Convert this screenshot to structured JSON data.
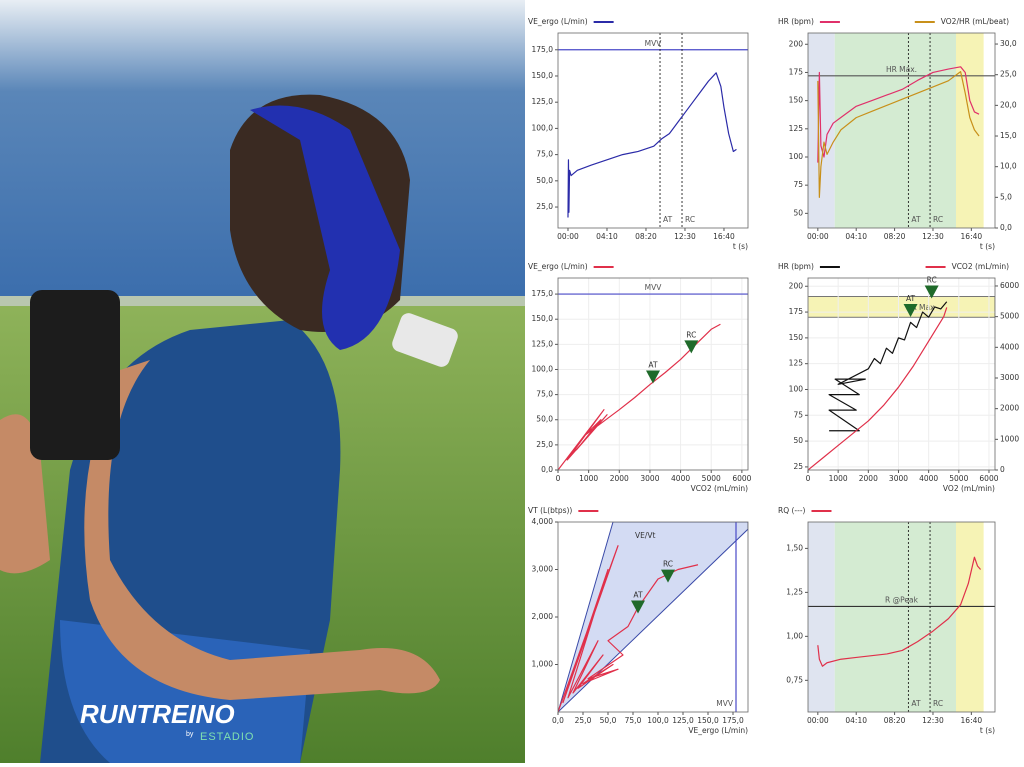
{
  "branding": {
    "brand": "RUNTREINO",
    "by": "by",
    "partner": "ESTADIO"
  },
  "chart_data": [
    {
      "type": "line",
      "xlabel": "t (s)",
      "xlim": [
        -64,
        1154
      ],
      "ylim": [
        5,
        191
      ],
      "xticks": [
        {
          "value": 0,
          "label": "00:00"
        },
        {
          "value": 250,
          "label": "04:10"
        },
        {
          "value": 500,
          "label": "08:20"
        },
        {
          "value": 750,
          "label": "12:30"
        },
        {
          "value": 1000,
          "label": "16:40"
        }
      ],
      "yticks": [
        {
          "value": 25,
          "label": "25,0"
        },
        {
          "value": 50,
          "label": "50,0"
        },
        {
          "value": 75,
          "label": "75,0"
        },
        {
          "value": 100,
          "label": "100,0"
        },
        {
          "value": 125,
          "label": "125,0"
        },
        {
          "value": 150,
          "label": "150,0"
        },
        {
          "value": 175,
          "label": "175,0"
        }
      ],
      "x": [
        0,
        3,
        6,
        10,
        20,
        60,
        150,
        250,
        350,
        450,
        550,
        600,
        650,
        700,
        750,
        800,
        850,
        900,
        950,
        980,
        1000,
        1030,
        1060,
        1080
      ],
      "series": [
        {
          "name": "VE_ergo (L/min)",
          "color": "#2b2ba8",
          "values": [
            15,
            70,
            20,
            60,
            55,
            60,
            65,
            70,
            75,
            78,
            83,
            90,
            95,
            105,
            115,
            125,
            135,
            145,
            153,
            140,
            120,
            95,
            78,
            80
          ]
        }
      ],
      "hlines": [
        {
          "label": "MVV",
          "y": 175,
          "color": "#4a4ac8"
        }
      ],
      "vlines": [
        {
          "label": "AT",
          "x": 590
        },
        {
          "label": "RC",
          "x": 731
        }
      ]
    },
    {
      "type": "line",
      "xlabel": "t (s)",
      "xlim": [
        -64,
        1154
      ],
      "ylim": [
        37,
        210
      ],
      "y2lim": [
        0,
        31.8
      ],
      "xticks": [
        {
          "value": 0,
          "label": "00:00"
        },
        {
          "value": 250,
          "label": "04:10"
        },
        {
          "value": 500,
          "label": "08:20"
        },
        {
          "value": 750,
          "label": "12:30"
        },
        {
          "value": 1000,
          "label": "16:40"
        }
      ],
      "yticks": [
        50,
        75,
        100,
        125,
        150,
        175,
        200
      ],
      "y2ticks": [
        {
          "value": 0,
          "label": "0,0"
        },
        {
          "value": 5,
          "label": "5,0"
        },
        {
          "value": 10,
          "label": "10,0"
        },
        {
          "value": 15,
          "label": "15,0"
        },
        {
          "value": 20,
          "label": "20,0"
        },
        {
          "value": 25,
          "label": "25,0"
        },
        {
          "value": 30,
          "label": "30,0"
        }
      ],
      "bands": [
        {
          "from": -64,
          "to": 110,
          "color": "#dfe4f0"
        },
        {
          "from": 110,
          "to": 900,
          "color": "#d4ebd2"
        },
        {
          "from": 900,
          "to": 1080,
          "color": "#f6f3b5"
        }
      ],
      "x": [
        0,
        10,
        20,
        40,
        60,
        100,
        150,
        250,
        350,
        450,
        550,
        650,
        750,
        850,
        930,
        960,
        990,
        1020,
        1050
      ],
      "series": [
        {
          "name": "HR (bpm)",
          "color": "#e0306a",
          "values": [
            95,
            175,
            110,
            100,
            120,
            130,
            135,
            145,
            150,
            155,
            160,
            168,
            175,
            178,
            180,
            175,
            150,
            140,
            138
          ]
        },
        {
          "name": "VO2/HR (mL/beat)",
          "color": "#c8901a",
          "axis": "y2",
          "values": [
            24,
            5,
            10,
            14,
            12,
            14,
            16,
            18,
            19,
            20,
            21,
            22,
            23,
            24,
            25.5,
            22,
            18,
            16,
            15
          ]
        }
      ],
      "hlines": [
        {
          "label": "HR Max.",
          "y": 172,
          "color": "#555"
        }
      ],
      "vlines": [
        {
          "label": "AT",
          "x": 590
        },
        {
          "label": "RC",
          "x": 731
        }
      ]
    },
    {
      "type": "line",
      "xlabel": "VCO2 (mL/min)",
      "xlim": [
        0,
        6200
      ],
      "ylim": [
        0,
        191
      ],
      "grid": true,
      "xticks": [
        0,
        1000,
        2000,
        3000,
        4000,
        5000,
        6000
      ],
      "yticks": [
        {
          "value": 0,
          "label": "0,0"
        },
        {
          "value": 25,
          "label": "25,0"
        },
        {
          "value": 50,
          "label": "50,0"
        },
        {
          "value": 75,
          "label": "75,0"
        },
        {
          "value": 100,
          "label": "100,0"
        },
        {
          "value": 125,
          "label": "125,0"
        },
        {
          "value": 150,
          "label": "150,0"
        },
        {
          "value": 175,
          "label": "175,0"
        }
      ],
      "series": [
        {
          "name": "VE_ergo (L/min)",
          "color": "#e0304a",
          "x": [
            0,
            1500,
            300,
            1600,
            600,
            1400,
            900,
            2000,
            2500,
            3000,
            3500,
            4000,
            4500,
            5000,
            5300
          ],
          "values": [
            0,
            60,
            10,
            55,
            20,
            50,
            35,
            60,
            72,
            85,
            97,
            110,
            125,
            140,
            145
          ]
        }
      ],
      "hlines": [
        {
          "label": "MVV",
          "y": 175,
          "color": "#4a4ac8"
        }
      ],
      "markers": [
        {
          "label": "AT",
          "x": 3100,
          "y": 92
        },
        {
          "label": "RC",
          "x": 4350,
          "y": 122
        }
      ]
    },
    {
      "type": "line",
      "xlabel": "VO2 (mL/min)",
      "xlim": [
        0,
        6200
      ],
      "ylim": [
        22,
        208
      ],
      "y2lim": [
        0,
        6260
      ],
      "grid": true,
      "xticks": [
        0,
        1000,
        2000,
        3000,
        4000,
        5000,
        6000
      ],
      "yticks": [
        25,
        50,
        75,
        100,
        125,
        150,
        175,
        200
      ],
      "y2ticks": [
        0,
        1000,
        2000,
        3000,
        4000,
        5000,
        6000
      ],
      "hbands": [
        {
          "from": 170,
          "to": 190,
          "color": "#f6f3b5",
          "label": "HR Max"
        }
      ],
      "series": [
        {
          "name": "HR (bpm)",
          "color": "#111111",
          "x": [
            700,
            1700,
            700,
            1600,
            700,
            1700,
            900,
            1900,
            1000,
            2000,
            2200,
            2400,
            2600,
            2800,
            3000,
            3200,
            3400,
            3600,
            3800,
            4000,
            4200,
            4400,
            4600
          ],
          "values": [
            60,
            60,
            80,
            80,
            95,
            95,
            110,
            110,
            105,
            120,
            130,
            125,
            140,
            135,
            150,
            148,
            165,
            160,
            175,
            170,
            180,
            178,
            185
          ]
        },
        {
          "name": "VCO2 (mL/min)",
          "color": "#e0304a",
          "axis": "y2",
          "x": [
            0,
            500,
            1000,
            1500,
            2000,
            2500,
            3000,
            3500,
            4000,
            4500,
            4600
          ],
          "values": [
            0,
            400,
            800,
            1200,
            1600,
            2100,
            2700,
            3400,
            4200,
            5000,
            5300
          ]
        }
      ],
      "markers": [
        {
          "label": "AT",
          "x": 3400,
          "y": 176
        },
        {
          "label": "RC",
          "x": 4100,
          "y": 194
        }
      ]
    },
    {
      "type": "line",
      "xlabel": "VE_ergo (L/min)",
      "xlim": [
        0,
        190
      ],
      "ylim": [
        0,
        4000
      ],
      "xticks": [
        {
          "value": 0,
          "label": "0,0"
        },
        {
          "value": 25,
          "label": "25,0"
        },
        {
          "value": 50,
          "label": "50,0"
        },
        {
          "value": 75,
          "label": "75,0"
        },
        {
          "value": 100,
          "label": "100,0"
        },
        {
          "value": 125,
          "label": "125,0"
        },
        {
          "value": 150,
          "label": "150,0"
        },
        {
          "value": 175,
          "label": "175,0"
        }
      ],
      "yticks": [
        {
          "value": 1000,
          "label": "1,000"
        },
        {
          "value": 2000,
          "label": "2,000"
        },
        {
          "value": 3000,
          "label": "3,000"
        },
        {
          "value": 4000,
          "label": "4,000"
        }
      ],
      "wedge": {
        "label": "VE/Vt",
        "color": "#c8d2f0",
        "x": [
          0,
          55,
          190,
          190
        ],
        "y": [
          0,
          4000,
          4000,
          3850
        ]
      },
      "series": [
        {
          "name": "VT (L(btps))",
          "color": "#e0304a",
          "x": [
            0,
            60,
            5,
            50,
            10,
            40,
            15,
            45,
            20,
            55,
            25,
            60,
            30,
            65,
            50,
            70,
            80,
            90,
            100,
            110,
            120,
            130,
            140
          ],
          "values": [
            0,
            3500,
            200,
            3000,
            300,
            1500,
            400,
            1200,
            500,
            1000,
            600,
            900,
            700,
            1200,
            1500,
            1800,
            2200,
            2500,
            2800,
            2900,
            3000,
            3050,
            3100
          ]
        }
      ],
      "vlines": [
        {
          "label": "MVV",
          "x": 178,
          "color": "#4a4ac8"
        }
      ],
      "markers": [
        {
          "label": "AT",
          "x": 80,
          "y": 2200
        },
        {
          "label": "RC",
          "x": 110,
          "y": 2850
        }
      ]
    },
    {
      "type": "line",
      "xlabel": "t (s)",
      "xlim": [
        -64,
        1154
      ],
      "ylim": [
        0.57,
        1.65
      ],
      "xticks": [
        {
          "value": 0,
          "label": "00:00"
        },
        {
          "value": 250,
          "label": "04:10"
        },
        {
          "value": 500,
          "label": "08:20"
        },
        {
          "value": 750,
          "label": "12:30"
        },
        {
          "value": 1000,
          "label": "16:40"
        }
      ],
      "yticks": [
        {
          "value": 0.75,
          "label": "0,75"
        },
        {
          "value": 1,
          "label": "1,00"
        },
        {
          "value": 1.25,
          "label": "1,25"
        },
        {
          "value": 1.5,
          "label": "1,50"
        }
      ],
      "bands": [
        {
          "from": -64,
          "to": 110,
          "color": "#dfe4f0"
        },
        {
          "from": 110,
          "to": 900,
          "color": "#d4ebd2"
        },
        {
          "from": 900,
          "to": 1080,
          "color": "#f6f3b5"
        }
      ],
      "x": [
        0,
        10,
        30,
        60,
        150,
        250,
        350,
        450,
        550,
        650,
        750,
        850,
        930,
        980,
        1020,
        1040,
        1060
      ],
      "series": [
        {
          "name": "RQ (---)",
          "color": "#e0304a",
          "values": [
            0.95,
            0.87,
            0.83,
            0.85,
            0.87,
            0.88,
            0.89,
            0.9,
            0.92,
            0.97,
            1.03,
            1.1,
            1.18,
            1.3,
            1.45,
            1.4,
            1.38
          ]
        }
      ],
      "hlines": [
        {
          "label": "R @Peak",
          "y": 1.17,
          "color": "#333"
        }
      ],
      "vlines": [
        {
          "label": "AT",
          "x": 590
        },
        {
          "label": "RC",
          "x": 731
        }
      ]
    }
  ]
}
